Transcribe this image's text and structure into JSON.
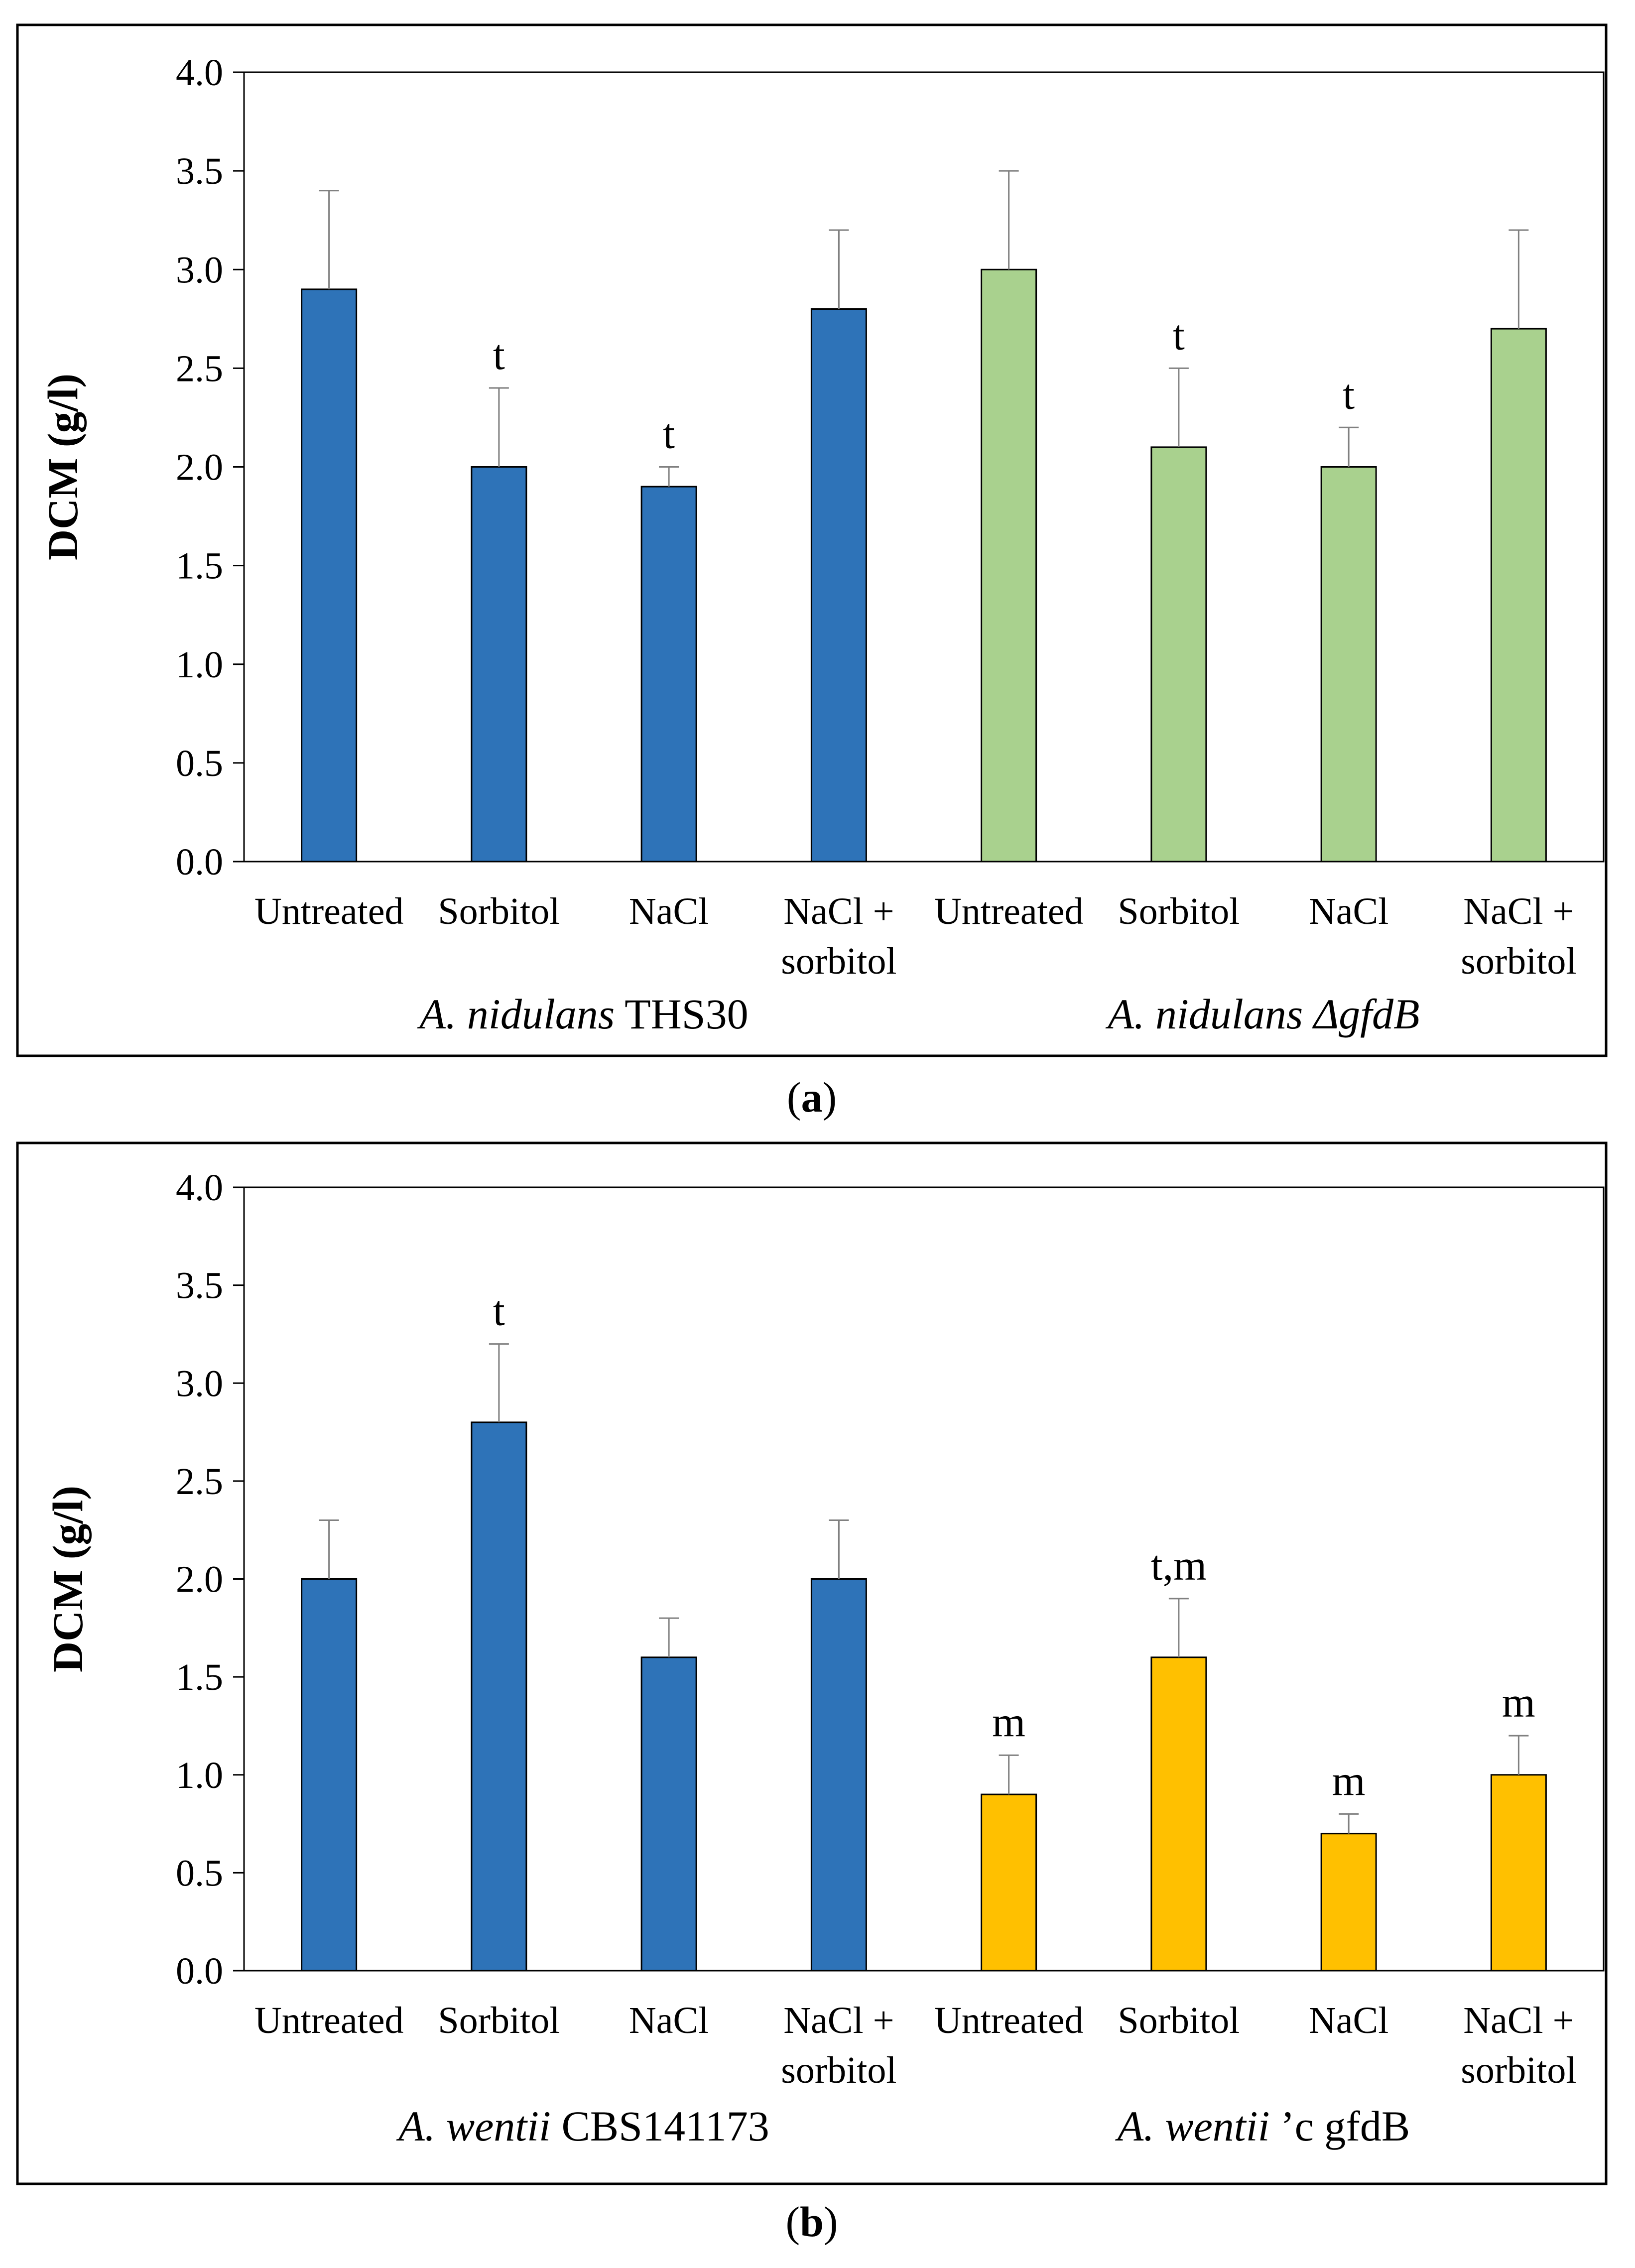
{
  "chart_data": [
    {
      "type": "bar",
      "panel_label": "a",
      "ylabel": "DCM (g/l)",
      "ylim": [
        0,
        4
      ],
      "yticks": [
        "0.0",
        "0.5",
        "1.0",
        "1.5",
        "2.0",
        "2.5",
        "3.0",
        "3.5",
        "4.0"
      ],
      "categories": [
        [
          "Untreated"
        ],
        [
          "Sorbitol"
        ],
        [
          "NaCl"
        ],
        [
          "NaCl +",
          "sorbitol"
        ],
        [
          "Untreated"
        ],
        [
          "Sorbitol"
        ],
        [
          "NaCl"
        ],
        [
          "NaCl +",
          "sorbitol"
        ]
      ],
      "values": [
        2.9,
        2.0,
        1.9,
        2.8,
        3.0,
        2.1,
        2.0,
        2.7
      ],
      "errors": [
        0.5,
        0.4,
        0.1,
        0.4,
        0.5,
        0.4,
        0.2,
        0.5
      ],
      "annotations": [
        "",
        "t",
        "t",
        "",
        "",
        "t",
        "t",
        ""
      ],
      "colors": [
        "#2E73B8",
        "#2E73B8",
        "#2E73B8",
        "#2E73B8",
        "#A9D18E",
        "#A9D18E",
        "#A9D18E",
        "#A9D18E"
      ],
      "groups": [
        {
          "italic": "A. nidulans",
          "normal": " THS30"
        },
        {
          "italic": "A. nidulans ΔgfdB",
          "normal": ""
        }
      ]
    },
    {
      "type": "bar",
      "panel_label": "b",
      "ylabel": "DCM (g/l)",
      "ylim": [
        0,
        4
      ],
      "yticks": [
        "0.0",
        "0.5",
        "1.0",
        "1.5",
        "2.0",
        "2.5",
        "3.0",
        "3.5",
        "4.0"
      ],
      "categories": [
        [
          "Untreated"
        ],
        [
          "Sorbitol"
        ],
        [
          "NaCl"
        ],
        [
          "NaCl +",
          "sorbitol"
        ],
        [
          "Untreated"
        ],
        [
          "Sorbitol"
        ],
        [
          "NaCl"
        ],
        [
          "NaCl +",
          "sorbitol"
        ]
      ],
      "values": [
        2.0,
        2.8,
        1.6,
        2.0,
        0.9,
        1.6,
        0.7,
        1.0
      ],
      "errors": [
        0.3,
        0.4,
        0.2,
        0.3,
        0.2,
        0.3,
        0.1,
        0.2
      ],
      "annotations": [
        "",
        "t",
        "",
        "",
        "m",
        "t,m",
        "m",
        "m"
      ],
      "colors": [
        "#2E73B8",
        "#2E73B8",
        "#2E73B8",
        "#2E73B8",
        "#FFC000",
        "#FFC000",
        "#FFC000",
        "#FFC000"
      ],
      "groups": [
        {
          "italic": "A. wentii",
          "normal": " CBS141173"
        },
        {
          "italic": "A. wentii",
          "normal": " ’c gfdB"
        }
      ]
    }
  ]
}
